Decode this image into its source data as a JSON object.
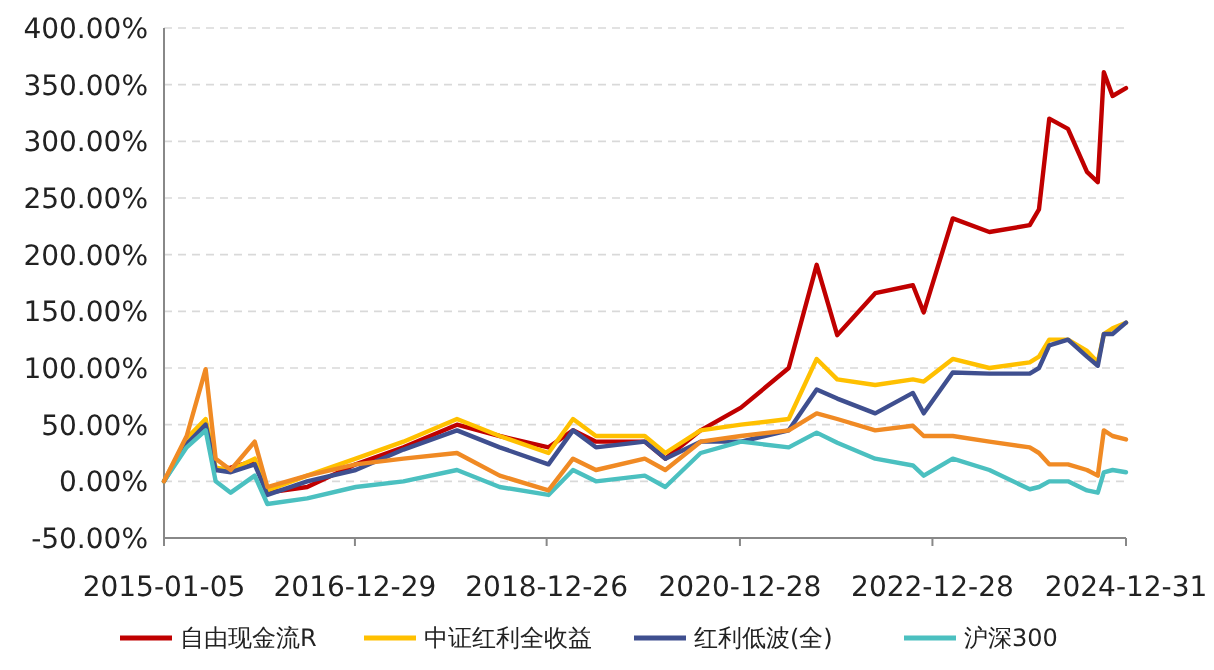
{
  "chart_data": {
    "type": "line",
    "x": [
      "2015-01-05",
      "2015-04-01",
      "2015-06-12",
      "2015-07-20",
      "2015-09-15",
      "2015-12-15",
      "2016-02-01",
      "2016-07-01",
      "2017-01-01",
      "2017-07-01",
      "2018-01-20",
      "2018-07-01",
      "2019-01-02",
      "2019-04-05",
      "2019-07-01",
      "2020-01-02",
      "2020-03-20",
      "2020-08-01",
      "2021-01-01",
      "2021-07-01",
      "2021-10-15",
      "2022-01-01",
      "2022-05-25",
      "2022-10-15",
      "2022-11-25",
      "2023-03-15",
      "2023-08-01",
      "2024-01-01",
      "2024-02-05",
      "2024-03-15",
      "2024-05-25",
      "2024-08-05",
      "2024-09-15",
      "2024-10-08",
      "2024-11-10",
      "2024-12-31"
    ],
    "series": [
      {
        "name": "自由现金流R",
        "color": "#c00000",
        "values": [
          null,
          null,
          null,
          10,
          12,
          18,
          -10,
          -5,
          15,
          30,
          50,
          40,
          30,
          45,
          35,
          35,
          20,
          45,
          65,
          100,
          191,
          129,
          166,
          173,
          149,
          232,
          220,
          226,
          240,
          320,
          311,
          273,
          264,
          361,
          340,
          347
        ]
      },
      {
        "name": "中证红利全收益",
        "color": "#ffc000",
        "values": [
          0,
          38,
          55,
          12,
          10,
          20,
          -8,
          5,
          20,
          35,
          55,
          40,
          25,
          55,
          40,
          40,
          25,
          45,
          50,
          55,
          108,
          90,
          85,
          90,
          88,
          108,
          100,
          105,
          110,
          125,
          125,
          115,
          105,
          130,
          135,
          140
        ]
      },
      {
        "name": "红利低波(全)",
        "color": "#3f4f8f",
        "values": [
          0,
          33,
          50,
          10,
          8,
          15,
          -12,
          0,
          10,
          28,
          45,
          30,
          15,
          45,
          30,
          35,
          20,
          35,
          35,
          45,
          81,
          73,
          60,
          78,
          60,
          96,
          95,
          95,
          100,
          120,
          125,
          110,
          102,
          130,
          130,
          140
        ]
      },
      {
        "name": "沪深300",
        "color": "#4bc0c0",
        "values": [
          0,
          30,
          45,
          0,
          -10,
          5,
          -20,
          -15,
          -5,
          0,
          10,
          -5,
          -12,
          10,
          0,
          5,
          -5,
          25,
          35,
          30,
          43,
          34,
          20,
          14,
          5,
          20,
          10,
          -7,
          -5,
          0,
          0,
          -8,
          -10,
          8,
          10,
          8
        ]
      },
      {
        "color": "#f08a24",
        "values": [
          0,
          40,
          99,
          20,
          10,
          35,
          -5,
          5,
          15,
          20,
          25,
          5,
          -8,
          20,
          10,
          20,
          10,
          35,
          40,
          45,
          60,
          55,
          45,
          49,
          40,
          40,
          35,
          30,
          25,
          15,
          15,
          10,
          5,
          45,
          40,
          37
        ]
      }
    ],
    "xlim": [
      "2015-01-05",
      "2024-12-31"
    ],
    "xticks": [
      {
        "value": "2015-01-05",
        "label": "2015-01-05"
      },
      {
        "value": "2016-12-29",
        "label": "2016-12-29"
      },
      {
        "value": "2018-12-26",
        "label": "2018-12-26"
      },
      {
        "value": "2020-12-28",
        "label": "2020-12-28"
      },
      {
        "value": "2022-12-28",
        "label": "2022-12-28"
      },
      {
        "value": "2024-12-31",
        "label": "2024-12-31"
      }
    ],
    "ylim": [
      -50,
      400
    ],
    "yticks": [
      {
        "value": -50,
        "label": "-50.00%"
      },
      {
        "value": 0,
        "label": "0.00%"
      },
      {
        "value": 50,
        "label": "50.00%"
      },
      {
        "value": 100,
        "label": "100.00%"
      },
      {
        "value": 150,
        "label": "150.00%"
      },
      {
        "value": 200,
        "label": "200.00%"
      },
      {
        "value": 250,
        "label": "250.00%"
      },
      {
        "value": 300,
        "label": "300.00%"
      },
      {
        "value": 350,
        "label": "350.00%"
      },
      {
        "value": 400,
        "label": "400.00%"
      }
    ],
    "grid": "y",
    "legend": "bottom",
    "marker": "none",
    "line_style": "solid"
  }
}
